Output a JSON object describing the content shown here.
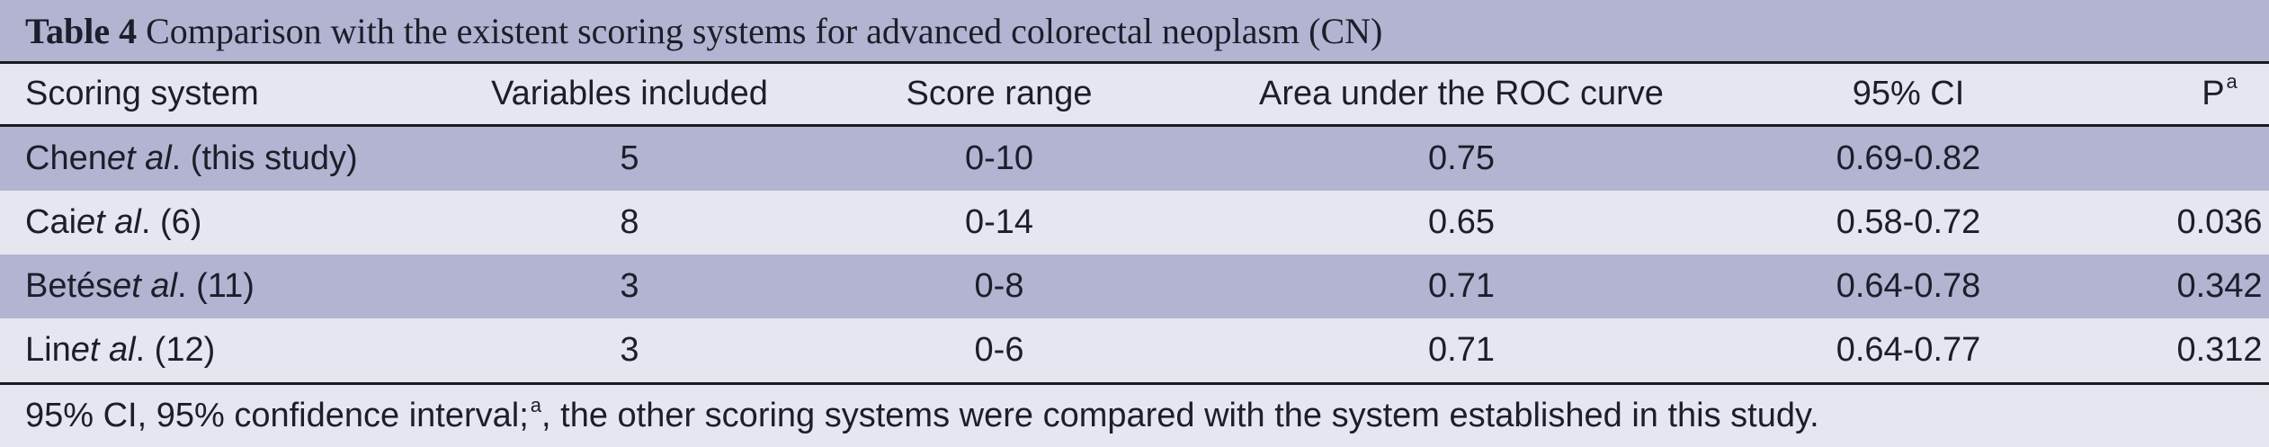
{
  "caption": {
    "label": "Table 4",
    "text": "Comparison with the existent scoring systems for advanced colorectal neoplasm (CN)"
  },
  "header": {
    "scoring_system": "Scoring system",
    "variables_included": "Variables included",
    "score_range": "Score range",
    "auc": "Area under the ROC curve",
    "ci": "95% CI",
    "p": "P",
    "p_sup": "a"
  },
  "rows": [
    {
      "author": "Chen ",
      "etal": "et al",
      "suffix": ". (this study)",
      "variables": "5",
      "range": "0-10",
      "auc": "0.75",
      "ci": "0.69-0.82",
      "p": ""
    },
    {
      "author": "Cai ",
      "etal": "et al",
      "suffix": ". (6)",
      "variables": "8",
      "range": "0-14",
      "auc": "0.65",
      "ci": "0.58-0.72",
      "p": "0.036"
    },
    {
      "author": "Betés ",
      "etal": "et al",
      "suffix": ". (11)",
      "variables": "3",
      "range": "0-8",
      "auc": "0.71",
      "ci": "0.64-0.78",
      "p": "0.342"
    },
    {
      "author": "Lin ",
      "etal": "et al",
      "suffix": ". (12)",
      "variables": "3",
      "range": "0-6",
      "auc": "0.71",
      "ci": "0.64-0.77",
      "p": "0.312"
    }
  ],
  "footnote": {
    "part1": "95% CI, 95% confidence interval; ",
    "sup": "a",
    "part2": ", the other scoring systems were compared with the system established in this study."
  }
}
